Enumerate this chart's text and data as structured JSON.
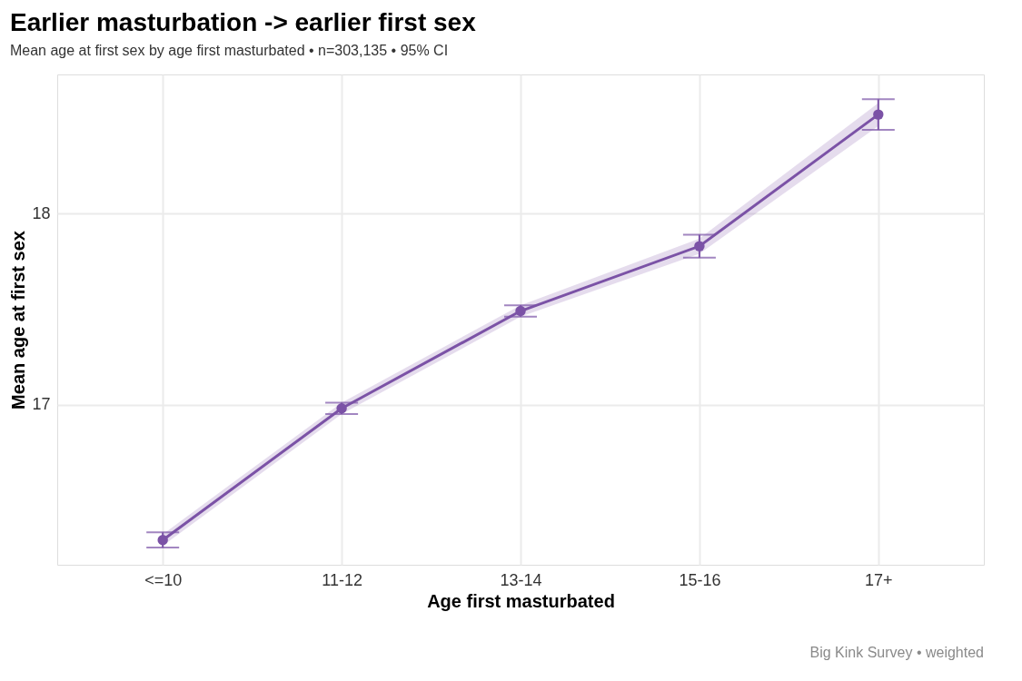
{
  "chart_data": {
    "type": "line",
    "title": "Earlier masturbation -> earlier first sex",
    "subtitle": "Mean age at first sex by age first masturbated  •  n=303,135  •  95% CI",
    "xlabel": "Age first masturbated",
    "ylabel": "Mean age at first sex",
    "categories": [
      "<=10",
      "11-12",
      "13-14",
      "15-16",
      "17+"
    ],
    "series": [
      {
        "color": "#7b52a6",
        "values": [
          16.29,
          16.98,
          17.49,
          17.83,
          18.52
        ],
        "errors": [
          0.04,
          0.03,
          0.03,
          0.06,
          0.08
        ],
        "lower": [
          16.26,
          16.95,
          17.46,
          17.79,
          18.46
        ],
        "upper": [
          16.32,
          17.01,
          17.52,
          17.87,
          18.58
        ]
      }
    ],
    "ylim": [
      16.16,
      18.73
    ],
    "yticks": [
      17,
      18
    ],
    "grid": true,
    "marker": "circle",
    "line_style": "solid",
    "annotations": [
      "Big Kink Survey  •  weighted"
    ]
  }
}
